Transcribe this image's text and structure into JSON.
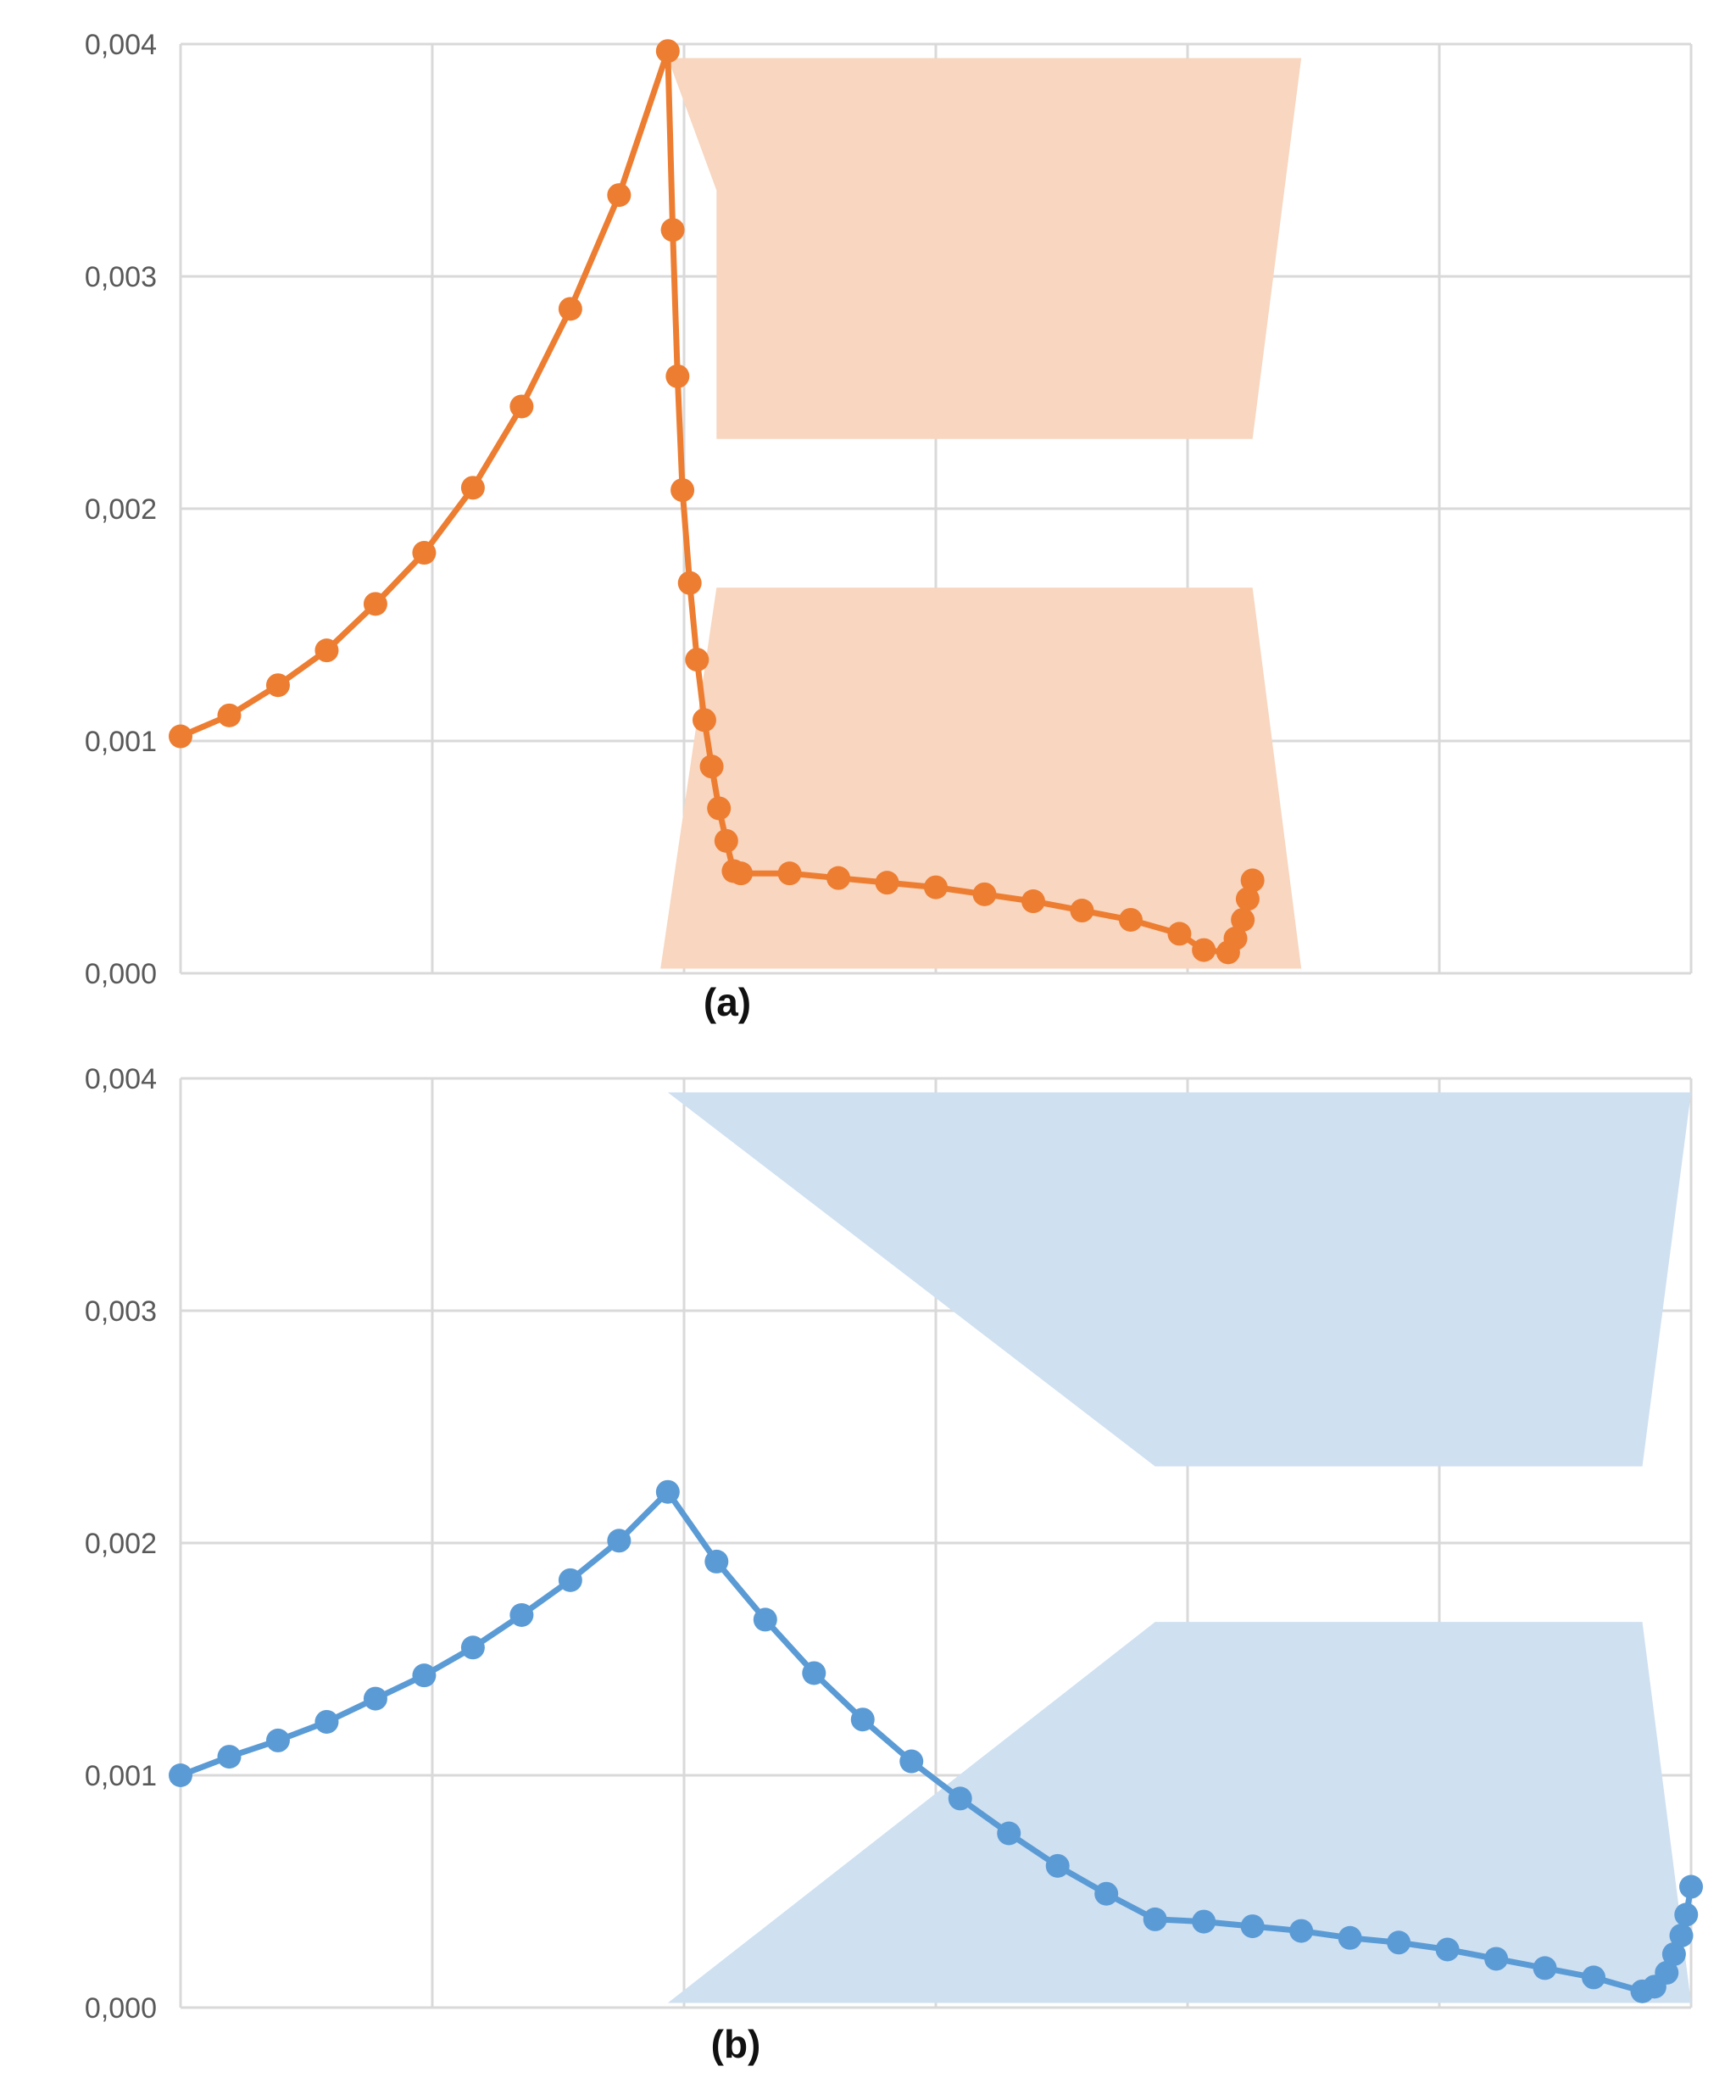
{
  "colors": {
    "series_a": "#ed7d31",
    "band_a": "#f8d6bf",
    "series_b": "#5b9bd5",
    "band_b": "#cfe0f1",
    "grid": "#d9d9d9",
    "tick_text": "#595959"
  },
  "chart_data": [
    {
      "type": "line",
      "panel_label": "(a)",
      "ylim": [
        0,
        0.004
      ],
      "yticks": [
        "0,000",
        "0,001",
        "0,002",
        "0,003",
        "0,004"
      ],
      "ytick_values": [
        0,
        0.001,
        0.002,
        0.003,
        0.004
      ],
      "xlim": [
        0,
        6.2
      ],
      "grid": true,
      "x_tick_labels_shown": false,
      "series": [
        {
          "marker": "circle",
          "color": "#ed7d31",
          "x": [
            0,
            0.2,
            0.4,
            0.6,
            0.8,
            1.0,
            1.2,
            1.4,
            1.6,
            1.8,
            2.0,
            2.02,
            2.04,
            2.06,
            2.09,
            2.12,
            2.15,
            2.18,
            2.21,
            2.24,
            2.27,
            2.3,
            2.5,
            2.7,
            2.9,
            3.1,
            3.3,
            3.5,
            3.7,
            3.9,
            4.1,
            4.2,
            4.3,
            4.33,
            4.36,
            4.38,
            4.4
          ],
          "y": [
            0.00102,
            0.00111,
            0.00124,
            0.00139,
            0.00159,
            0.00181,
            0.00209,
            0.00244,
            0.00286,
            0.00335,
            0.00397,
            0.0032,
            0.00257,
            0.00208,
            0.00168,
            0.00135,
            0.00109,
            0.00089,
            0.00071,
            0.00057,
            0.00044,
            0.00043,
            0.00043,
            0.00041,
            0.00039,
            0.00037,
            0.00034,
            0.00031,
            0.00027,
            0.00023,
            0.00017,
            0.0001,
            9e-05,
            0.00015,
            0.00023,
            0.00032,
            0.0004
          ]
        }
      ],
      "bands": [
        {
          "color": "#f8d6bf",
          "points": [
            [
              2.0,
              0.00394
            ],
            [
              4.6,
              0.00394
            ],
            [
              4.4,
              0.0023
            ],
            [
              2.2,
              0.0023
            ],
            [
              2.2,
              0.00337
            ]
          ]
        },
        {
          "color": "#f8d6bf",
          "points": [
            [
              2.2,
              0.00166
            ],
            [
              4.4,
              0.00166
            ],
            [
              4.6,
              2e-05
            ],
            [
              1.97,
              2e-05
            ]
          ]
        }
      ]
    },
    {
      "type": "line",
      "panel_label": "(b)",
      "ylim": [
        0,
        0.004
      ],
      "yticks": [
        "0,000",
        "0,001",
        "0,002",
        "0,003",
        "0,004"
      ],
      "ytick_values": [
        0,
        0.001,
        0.002,
        0.003,
        0.004
      ],
      "xlim": [
        0,
        6.2
      ],
      "grid": true,
      "x_tick_labels_shown": false,
      "series": [
        {
          "marker": "circle",
          "color": "#5b9bd5",
          "x": [
            0,
            0.2,
            0.4,
            0.6,
            0.8,
            1.0,
            1.2,
            1.4,
            1.6,
            1.8,
            2.0,
            2.2,
            2.4,
            2.6,
            2.8,
            3.0,
            3.2,
            3.4,
            3.6,
            3.8,
            4.0,
            4.2,
            4.4,
            4.6,
            4.8,
            5.0,
            5.2,
            5.4,
            5.6,
            5.8,
            6.0,
            6.05,
            6.1,
            6.13,
            6.16,
            6.18,
            6.2
          ],
          "y": [
            0.001,
            0.00108,
            0.00115,
            0.00123,
            0.00133,
            0.00143,
            0.00155,
            0.00169,
            0.00184,
            0.00201,
            0.00222,
            0.00192,
            0.00167,
            0.00144,
            0.00124,
            0.00106,
            0.0009,
            0.00075,
            0.00061,
            0.00049,
            0.00038,
            0.00037,
            0.00035,
            0.00033,
            0.0003,
            0.00028,
            0.00025,
            0.00021,
            0.00017,
            0.00013,
            7e-05,
            9e-05,
            0.00015,
            0.00023,
            0.00031,
            0.0004,
            0.00052
          ]
        }
      ],
      "bands": [
        {
          "color": "#cfe0f1",
          "points": [
            [
              2.0,
              0.00394
            ],
            [
              6.2,
              0.00394
            ],
            [
              6.0,
              0.00233
            ],
            [
              4.0,
              0.00233
            ]
          ]
        },
        {
          "color": "#cfe0f1",
          "points": [
            [
              2.0,
              2e-05
            ],
            [
              4.0,
              0.00166
            ],
            [
              6.0,
              0.00166
            ],
            [
              6.2,
              2e-05
            ]
          ]
        }
      ]
    }
  ]
}
